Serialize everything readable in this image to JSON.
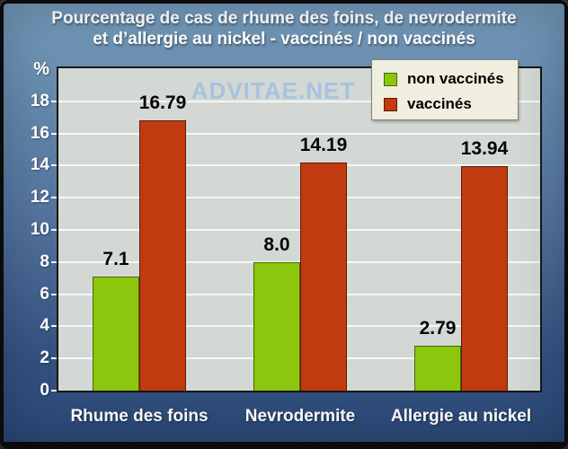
{
  "title": {
    "line1": "Pourcentage de cas de rhume des foins, de nevrodermite",
    "line2": "et d’allergie au nickel - vaccinés / non vaccinés"
  },
  "colors": {
    "background_top": "#7398b7",
    "background_bottom": "#2b4876",
    "plot_background": "#d3d8d4",
    "gridline": "#f6f8f6",
    "legend_background": "#f0efdf",
    "title_text": "#ffffff",
    "axis_text": "#ffffff",
    "value_text": "#060606",
    "watermark_text": "#a6c3de"
  },
  "chart_data": {
    "type": "bar",
    "title": "Pourcentage de cas de rhume des foins, de nevrodermite et d’allergie au nickel - vaccinés / non vaccinés",
    "categories": [
      "Rhume des foins",
      "Nevrodermite",
      "Allergie au nickel"
    ],
    "series": [
      {
        "name": "non vaccinés",
        "color": "#8cc70d",
        "border_color": "#44690a",
        "values": [
          7.1,
          8.0,
          2.79
        ],
        "value_labels": [
          "7.1",
          "8.0",
          "2.79"
        ]
      },
      {
        "name": "vaccinés",
        "color": "#c13a10",
        "border_color": "#5f1c05",
        "values": [
          16.79,
          14.19,
          13.94
        ],
        "value_labels": [
          "16.79",
          "14.19",
          "13.94"
        ]
      }
    ],
    "xlabel": "",
    "ylabel": "%",
    "yticks": [
      0,
      2,
      4,
      6,
      8,
      10,
      12,
      14,
      16,
      18
    ],
    "ylim": [
      0,
      20
    ],
    "grid": true,
    "legend_position": "top-right",
    "watermark": "ADVITAE.NET"
  }
}
